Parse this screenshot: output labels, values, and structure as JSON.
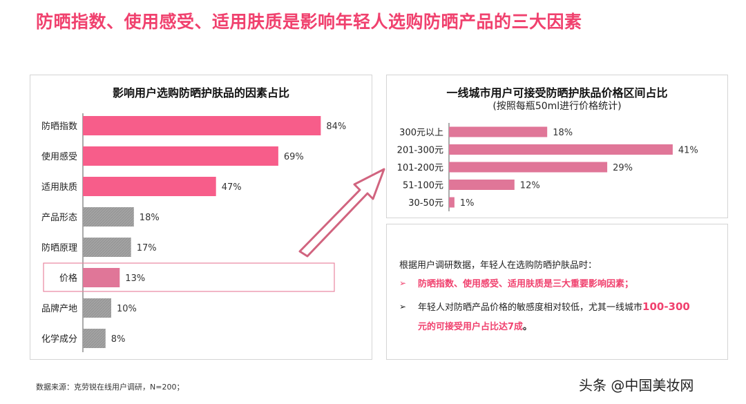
{
  "title": "防晒指数、使用感受、适用肤质是影响年轻人选购防晒产品的三大因素",
  "colors": {
    "pink": "#f75d8a",
    "dusty_pink": "#e07698",
    "gray": "#a3a3a3",
    "accent": "#f0416e"
  },
  "chart_data": [
    {
      "type": "bar",
      "orientation": "horizontal",
      "title": "影响用户选购防晒护肤品的因素占比",
      "categories": [
        "防晒指数",
        "使用感受",
        "适用肤质",
        "产品形态",
        "防晒原理",
        "价格",
        "品牌产地",
        "化学成分"
      ],
      "values": [
        84,
        69,
        47,
        18,
        17,
        13,
        10,
        8
      ],
      "data_labels": [
        "84%",
        "69%",
        "47%",
        "18%",
        "17%",
        "13%",
        "10%",
        "8%"
      ],
      "bar_colors": [
        "pink",
        "pink",
        "pink",
        "gray",
        "gray",
        "dusty_pink",
        "gray",
        "gray"
      ],
      "highlighted_category": "价格",
      "xlim": [
        0,
        100
      ],
      "grid": false
    },
    {
      "type": "bar",
      "orientation": "horizontal",
      "title": "一线城市用户可接受防晒护肤品价格区间占比",
      "subtitle": "(按照每瓶50ml进行价格统计)",
      "categories": [
        "300元以上",
        "201-300元",
        "101-200元",
        "51-100元",
        "30-50元"
      ],
      "values": [
        18,
        41,
        29,
        12,
        1
      ],
      "data_labels": [
        "18%",
        "41%",
        "29%",
        "12%",
        "1%"
      ],
      "xlim": [
        0,
        50
      ],
      "grid": false
    }
  ],
  "summary": {
    "intro": "根据用户调研数据，年轻人在选购防晒护肤品时：",
    "points": [
      {
        "marker": "➢",
        "text": "防晒指数、使用感受、适用肤质是三大重要影响因素；"
      },
      {
        "marker": "➢",
        "text_before": "年轻人对防晒产品价格的敏感度相对较低，尤其一线城市",
        "text_highlight_1": "100-300",
        "text_highlight_2": "元的可接受用户占比达7成",
        "text_end": "。"
      }
    ]
  },
  "source": "数据来源：克劳锐在线用户调研，N=200；",
  "watermark": "头条 @中国美妆网"
}
